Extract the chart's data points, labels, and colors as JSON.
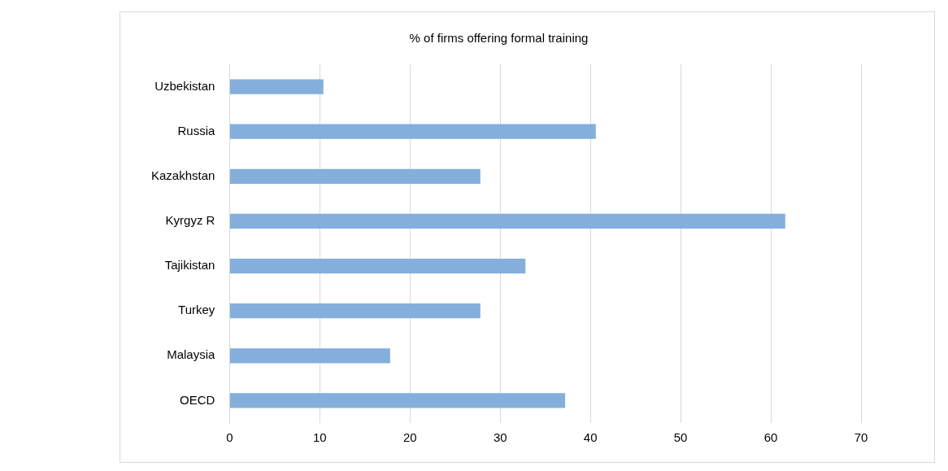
{
  "chart_data": {
    "type": "bar",
    "orientation": "horizontal",
    "title": "% of firms offering formal training",
    "categories": [
      "Uzbekistan",
      "Russia",
      "Kazakhstan",
      "Kyrgyz R",
      "Tajikistan",
      "Turkey",
      "Malaysia",
      "OECD"
    ],
    "values": [
      10.4,
      40.6,
      27.8,
      61.6,
      32.8,
      27.8,
      17.8,
      37.2
    ],
    "color": "#84afdc",
    "xlim": [
      0,
      70
    ],
    "xticks": [
      0,
      10,
      20,
      30,
      40,
      50,
      60,
      70
    ],
    "grid": "x",
    "legend": false
  }
}
